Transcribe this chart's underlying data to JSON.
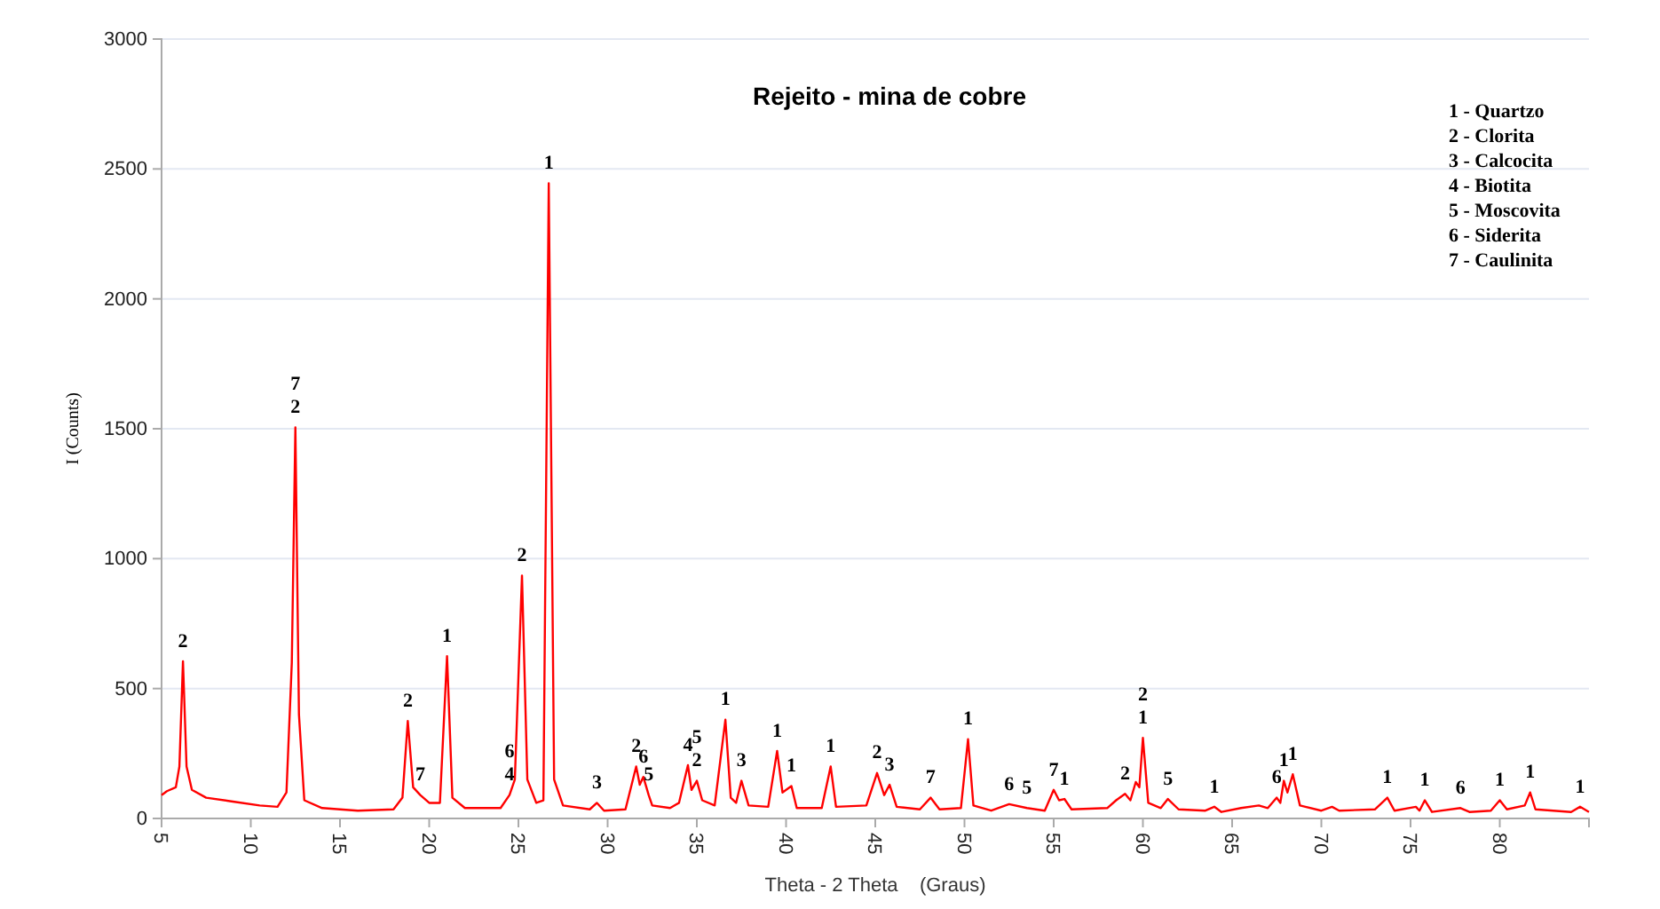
{
  "chart_data": {
    "type": "line",
    "title": "Rejeito - mina de cobre",
    "xlabel": "Theta - 2 Theta    (Graus)",
    "ylabel": "I (Counts)",
    "xlim": [
      5,
      85
    ],
    "xticks": [
      5,
      10,
      15,
      20,
      25,
      30,
      35,
      40,
      45,
      50,
      55,
      60,
      65,
      70,
      75,
      80
    ],
    "ylim": [
      0,
      3000
    ],
    "yticks": [
      0,
      500,
      1000,
      1500,
      2000,
      2500,
      3000
    ],
    "grid": "y",
    "marker": "none",
    "line_style": "solid",
    "series": [
      {
        "color": "#ff0000",
        "x": [
          5,
          5.3,
          5.8,
          6.0,
          6.2,
          6.4,
          6.7,
          7.5,
          9,
          10.5,
          11.5,
          12.0,
          12.3,
          12.5,
          12.7,
          13.0,
          14,
          16,
          18,
          18.5,
          18.8,
          19.1,
          19.5,
          20,
          20.6,
          21.0,
          21.3,
          22,
          24,
          24.5,
          24.8,
          25.2,
          25.5,
          26,
          26.4,
          26.7,
          27.0,
          27.5,
          29,
          29.4,
          29.8,
          31,
          31.6,
          31.8,
          32.0,
          32.3,
          32.5,
          33.5,
          34.0,
          34.5,
          34.7,
          35.0,
          35.3,
          36,
          36.6,
          36.9,
          37.2,
          37.5,
          37.9,
          39,
          39.5,
          39.8,
          40.3,
          40.6,
          42,
          42.5,
          42.8,
          44.5,
          45.1,
          45.5,
          45.8,
          46.2,
          47.5,
          48.1,
          48.6,
          49.8,
          50.2,
          50.5,
          51.5,
          52.5,
          53.5,
          54.5,
          55.0,
          55.3,
          55.6,
          56,
          58,
          58.5,
          59.0,
          59.3,
          59.6,
          59.8,
          60.0,
          60.3,
          61.0,
          61.4,
          62,
          63.5,
          64.0,
          64.4,
          65.5,
          66.5,
          67.0,
          67.5,
          67.7,
          67.9,
          68.1,
          68.4,
          68.8,
          70,
          70.6,
          71,
          73,
          73.7,
          74.1,
          75.3,
          75.5,
          75.8,
          76.2,
          77.8,
          78.3,
          79.5,
          80.0,
          80.4,
          81.4,
          81.7,
          82.0,
          84,
          84.5,
          85
        ],
        "values": [
          90,
          105,
          120,
          200,
          605,
          200,
          110,
          80,
          65,
          50,
          45,
          100,
          600,
          1505,
          400,
          70,
          40,
          30,
          35,
          80,
          375,
          120,
          90,
          60,
          60,
          625,
          80,
          40,
          40,
          90,
          150,
          935,
          150,
          60,
          70,
          2445,
          150,
          50,
          35,
          60,
          30,
          35,
          200,
          130,
          160,
          90,
          50,
          40,
          60,
          205,
          110,
          145,
          70,
          50,
          380,
          80,
          60,
          145,
          50,
          45,
          260,
          100,
          125,
          40,
          40,
          200,
          45,
          50,
          175,
          90,
          130,
          45,
          35,
          80,
          35,
          40,
          305,
          50,
          30,
          55,
          40,
          30,
          110,
          70,
          75,
          35,
          40,
          70,
          95,
          70,
          140,
          120,
          310,
          60,
          40,
          75,
          35,
          30,
          45,
          25,
          40,
          50,
          40,
          80,
          60,
          145,
          100,
          170,
          50,
          30,
          45,
          30,
          35,
          80,
          30,
          45,
          30,
          70,
          25,
          40,
          25,
          30,
          70,
          35,
          50,
          100,
          35,
          25,
          45,
          25
        ]
      }
    ],
    "annotations": [
      "1 - Quartzo",
      "2 - Clorita",
      "3 - Calcocita",
      "4 - Biotita",
      "5 - Moscovita",
      "6 - Siderita",
      "7 - Caulinita",
      {
        "text": "2",
        "x": 6.2,
        "y": 605
      },
      {
        "text": "7",
        "x": 12.5,
        "y": 1505
      },
      {
        "text": "2",
        "x": 12.5,
        "y": 1505
      },
      {
        "text": "2",
        "x": 18.8,
        "y": 375
      },
      {
        "text": "7",
        "x": 19.5,
        "y": 90
      },
      {
        "text": "1",
        "x": 21.0,
        "y": 625
      },
      {
        "text": "6",
        "x": 24.5,
        "y": 90
      },
      {
        "text": "4",
        "x": 24.5,
        "y": 90
      },
      {
        "text": "2",
        "x": 25.2,
        "y": 935
      },
      {
        "text": "1",
        "x": 26.7,
        "y": 2445
      },
      {
        "text": "3",
        "x": 29.4,
        "y": 60
      },
      {
        "text": "2",
        "x": 31.6,
        "y": 200
      },
      {
        "text": "6",
        "x": 32.0,
        "y": 160
      },
      {
        "text": "5",
        "x": 32.3,
        "y": 90
      },
      {
        "text": "4",
        "x": 34.5,
        "y": 205
      },
      {
        "text": "5",
        "x": 35.0,
        "y": 145
      },
      {
        "text": "2",
        "x": 35.0,
        "y": 145
      },
      {
        "text": "1",
        "x": 36.6,
        "y": 380
      },
      {
        "text": "3",
        "x": 37.5,
        "y": 145
      },
      {
        "text": "1",
        "x": 39.5,
        "y": 260
      },
      {
        "text": "1",
        "x": 40.3,
        "y": 125
      },
      {
        "text": "1",
        "x": 42.5,
        "y": 200
      },
      {
        "text": "2",
        "x": 45.1,
        "y": 175
      },
      {
        "text": "3",
        "x": 45.8,
        "y": 130
      },
      {
        "text": "7",
        "x": 48.1,
        "y": 80
      },
      {
        "text": "1",
        "x": 50.2,
        "y": 305
      },
      {
        "text": "6",
        "x": 52.5,
        "y": 55
      },
      {
        "text": "5",
        "x": 53.5,
        "y": 40
      },
      {
        "text": "7",
        "x": 55.0,
        "y": 110
      },
      {
        "text": "1",
        "x": 55.6,
        "y": 75
      },
      {
        "text": "2",
        "x": 59.0,
        "y": 95
      },
      {
        "text": "2",
        "x": 60.0,
        "y": 310
      },
      {
        "text": "1",
        "x": 60.0,
        "y": 310
      },
      {
        "text": "5",
        "x": 61.4,
        "y": 75
      },
      {
        "text": "1",
        "x": 64.0,
        "y": 45
      },
      {
        "text": "6",
        "x": 67.5,
        "y": 80
      },
      {
        "text": "1",
        "x": 67.9,
        "y": 145
      },
      {
        "text": "1",
        "x": 68.4,
        "y": 170
      },
      {
        "text": "1",
        "x": 73.7,
        "y": 80
      },
      {
        "text": "1",
        "x": 75.8,
        "y": 70
      },
      {
        "text": "6",
        "x": 77.8,
        "y": 40
      },
      {
        "text": "1",
        "x": 80.0,
        "y": 70
      },
      {
        "text": "1",
        "x": 81.7,
        "y": 100
      },
      {
        "text": "1",
        "x": 84.5,
        "y": 45
      }
    ]
  }
}
